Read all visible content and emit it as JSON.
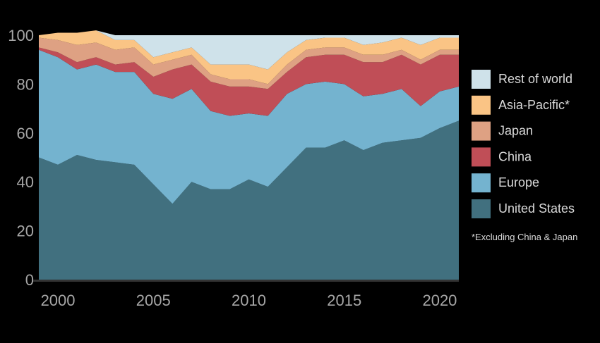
{
  "chart_data": {
    "type": "area",
    "stacked": true,
    "x": [
      1999,
      2000,
      2001,
      2002,
      2003,
      2004,
      2005,
      2006,
      2007,
      2008,
      2009,
      2010,
      2011,
      2012,
      2013,
      2014,
      2015,
      2016,
      2017,
      2018,
      2019,
      2020,
      2021
    ],
    "ylim": [
      0,
      100
    ],
    "yticks": [
      0,
      20,
      40,
      60,
      80,
      100
    ],
    "xticks": [
      2000,
      2005,
      2010,
      2015,
      2020
    ],
    "grid": false,
    "legend_position": "right",
    "series": [
      {
        "name": "United States",
        "color": "#41707f",
        "values": [
          50,
          47,
          51,
          49,
          48,
          47,
          39,
          31,
          40,
          37,
          37,
          41,
          38,
          46,
          54,
          54,
          57,
          53,
          56,
          57,
          58,
          62,
          65
        ]
      },
      {
        "name": "Europe",
        "color": "#74b3cf",
        "values": [
          44,
          44,
          35,
          39,
          37,
          38,
          37,
          43,
          38,
          32,
          30,
          27,
          29,
          30,
          26,
          27,
          23,
          22,
          20,
          21,
          13,
          15,
          14
        ]
      },
      {
        "name": "China",
        "color": "#c04e57",
        "values": [
          1,
          2,
          3,
          3,
          3,
          4,
          7,
          12,
          10,
          12,
          12,
          11,
          11,
          9,
          11,
          11,
          12,
          14,
          13,
          14,
          17,
          15,
          13
        ]
      },
      {
        "name": "Japan",
        "color": "#dea183",
        "values": [
          4,
          5,
          7,
          6,
          6,
          6,
          5,
          4,
          4,
          3,
          3,
          3,
          2,
          3,
          3,
          3,
          3,
          3,
          3,
          2,
          2,
          2,
          2
        ]
      },
      {
        "name": "Asia-Pacific*",
        "color": "#fac485",
        "values": [
          1,
          3,
          5,
          5,
          4,
          3,
          3,
          3,
          3,
          4,
          6,
          6,
          6,
          5,
          4,
          4,
          4,
          4,
          5,
          5,
          6,
          5,
          5
        ]
      },
      {
        "name": "Rest of world",
        "color": "#cfe2ea",
        "values": [
          0,
          0,
          0,
          0,
          2,
          2,
          9,
          7,
          5,
          12,
          12,
          12,
          14,
          7,
          2,
          1,
          1,
          4,
          3,
          1,
          4,
          1,
          1
        ]
      }
    ],
    "note": "*Excluding China & Japan"
  }
}
